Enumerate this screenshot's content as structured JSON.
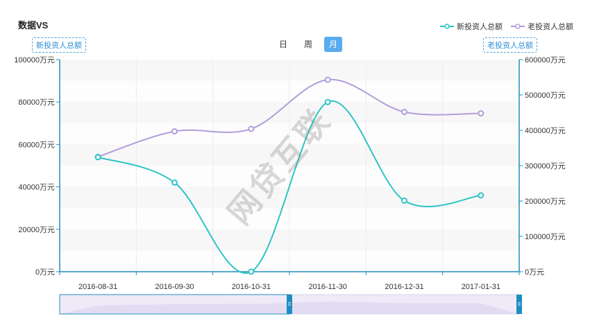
{
  "title": "数据VS",
  "legend": [
    {
      "name": "新投资人总额",
      "color": "#2ec4c6"
    },
    {
      "name": "老投资人总额",
      "color": "#b19ddb"
    }
  ],
  "axis_tags": {
    "left": "新投资人总额",
    "right": "老投资人总额"
  },
  "period_tabs": [
    {
      "label": "日",
      "active": false
    },
    {
      "label": "周",
      "active": false
    },
    {
      "label": "月",
      "active": true
    }
  ],
  "watermark": "网贷互联",
  "chart_data": {
    "type": "line",
    "categories": [
      "2016-08-31",
      "2016-09-30",
      "2016-10-31",
      "2016-11-30",
      "2016-12-31",
      "2017-01-31"
    ],
    "series": [
      {
        "name": "新投资人总额",
        "axis": "left",
        "values": [
          54000,
          42000,
          0,
          80000,
          33500,
          36000
        ],
        "color": "#2ec4c6"
      },
      {
        "name": "老投资人总额",
        "axis": "right",
        "values": [
          325000,
          397000,
          404000,
          543000,
          452000,
          448000
        ],
        "color": "#b19ddb"
      }
    ],
    "y_left": {
      "min": 0,
      "max": 100000,
      "ticks": [
        "0万元",
        "20000万元",
        "40000万元",
        "60000万元",
        "80000万元",
        "100000万元"
      ]
    },
    "y_right": {
      "min": 0,
      "max": 600000,
      "ticks": [
        "0万元",
        "100000万元",
        "200000万元",
        "300000万元",
        "400000万元",
        "500000万元",
        "600000万元"
      ]
    },
    "axis_color": "#1f8dc2",
    "zoom_slider": {
      "start": 0,
      "end": 100,
      "fill_color": "#eeeaf8"
    }
  }
}
